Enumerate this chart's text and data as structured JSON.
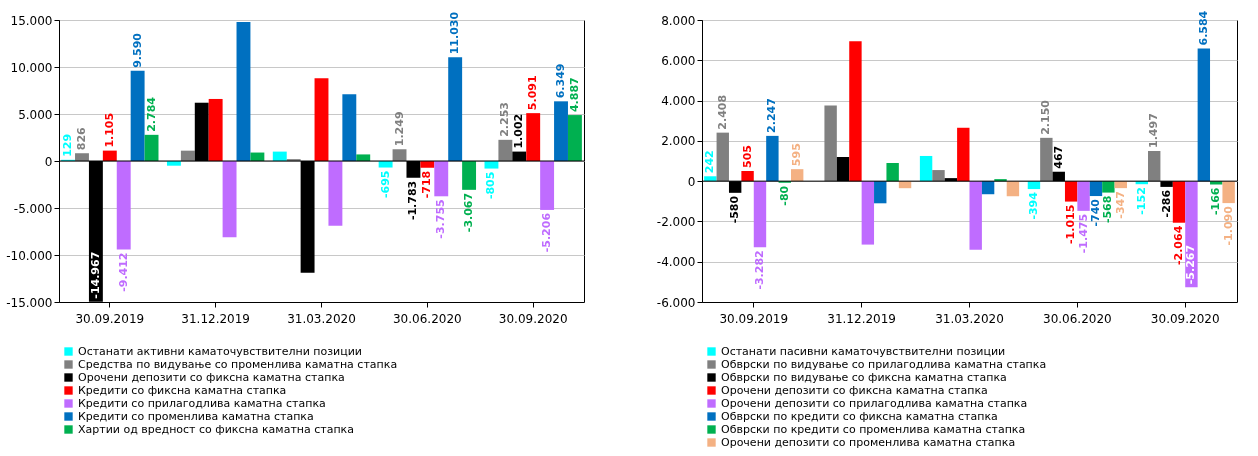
{
  "chart_data": [
    {
      "type": "bar",
      "categories": [
        "30.09.2019",
        "31.12.2019",
        "31.03.2020",
        "30.06.2020",
        "30.09.2020"
      ],
      "ylim": [
        -15000,
        15000
      ],
      "yticks": [
        {
          "value": -15000,
          "label": "-15.000"
        },
        {
          "value": -10000,
          "label": "-10.000"
        },
        {
          "value": -5000,
          "label": "-5.000"
        },
        0,
        {
          "value": 5000,
          "label": "5.000"
        },
        {
          "value": 10000,
          "label": "10.000"
        },
        {
          "value": 15000,
          "label": "15.000"
        }
      ],
      "grid": "y",
      "legend": "bottom",
      "series": [
        {
          "name": "Останати активни каматочувствителни позиции",
          "color": "#00ffff",
          "values": [
            129,
            -500,
            1000,
            -695,
            -805
          ],
          "value_labels": [
            "129",
            null,
            null,
            "-695",
            "-805"
          ]
        },
        {
          "name": "Средства по видување со променлива каматна стапка",
          "color": "#808080",
          "values": [
            826,
            1100,
            200,
            1249,
            2253
          ],
          "value_labels": [
            "826",
            null,
            null,
            "1.249",
            "2.253"
          ]
        },
        {
          "name": "Орочени депозити со фиксна каматна стапка",
          "color": "#000000",
          "values": [
            -14967,
            6200,
            -11900,
            -1783,
            1002
          ],
          "value_labels": [
            "-14.967",
            null,
            null,
            "-1.783",
            "1.002"
          ]
        },
        {
          "name": "Кредити со фиксна каматна стапка",
          "color": "#ff0000",
          "values": [
            1105,
            6600,
            8800,
            -718,
            5091
          ],
          "value_labels": [
            "1.105",
            null,
            null,
            "-718",
            "5.091"
          ]
        },
        {
          "name": "Кредити со прилагодлива каматна стапка",
          "color": "#bf6cff",
          "values": [
            -9412,
            -8100,
            -6900,
            -3755,
            -5206
          ],
          "value_labels": [
            "-9.412",
            null,
            null,
            "-3.755",
            "-5.206"
          ]
        },
        {
          "name": "Кредити со променлива каматна стапка",
          "color": "#0070c0",
          "values": [
            9590,
            14800,
            7100,
            11030,
            6349
          ],
          "value_labels": [
            "9.590",
            null,
            null,
            "11.030",
            "6.349"
          ]
        },
        {
          "name": "Хартии од вредност со фиксна каматна стапка",
          "color": "#00b050",
          "values": [
            2784,
            900,
            700,
            -3067,
            4887
          ],
          "value_labels": [
            "2.784",
            null,
            null,
            "-3.067",
            "4.887"
          ]
        }
      ]
    },
    {
      "type": "bar",
      "categories": [
        "30.09.2019",
        "31.12.2019",
        "31.03.2020",
        "30.06.2020",
        "30.09.2020"
      ],
      "ylim": [
        -6000,
        8000
      ],
      "yticks": [
        {
          "value": -6000,
          "label": "-6.000"
        },
        {
          "value": -4000,
          "label": "-4.000"
        },
        {
          "value": -2000,
          "label": "-2.000"
        },
        0,
        {
          "value": 2000,
          "label": "2.000"
        },
        {
          "value": 4000,
          "label": "4.000"
        },
        {
          "value": 6000,
          "label": "6.000"
        },
        {
          "value": 8000,
          "label": "8.000"
        }
      ],
      "grid": "y",
      "legend": "bottom",
      "series": [
        {
          "name": "Останати пасивни каматочувствителни позиции",
          "color": "#00ffff",
          "values": [
            242,
            null,
            1250,
            -394,
            -152
          ],
          "value_labels": [
            "242",
            null,
            null,
            "-394",
            "-152"
          ]
        },
        {
          "name": "Обврски по видување со прилагодлива каматна стапка",
          "color": "#808080",
          "values": [
            2408,
            3750,
            550,
            2150,
            1497
          ],
          "value_labels": [
            "2.408",
            null,
            null,
            "2.150",
            "1.497"
          ]
        },
        {
          "name": "Обврски по видување со фиксна каматна стапка",
          "color": "#000000",
          "values": [
            -580,
            1200,
            150,
            467,
            -286
          ],
          "value_labels": [
            "-580",
            null,
            null,
            "467",
            "-286"
          ]
        },
        {
          "name": "Орочени депозити со фиксна каматна стапка",
          "color": "#ff0000",
          "values": [
            505,
            6950,
            2650,
            -1015,
            -2064
          ],
          "value_labels": [
            "505",
            null,
            null,
            "-1.015",
            "-2.064"
          ]
        },
        {
          "name": "Орочени депозити со прилагодлива каматна стапка",
          "color": "#bf6cff",
          "values": [
            -3282,
            -3150,
            -3400,
            -1475,
            -5267
          ],
          "value_labels": [
            "-3.282",
            null,
            null,
            "-1.475",
            "-5.267"
          ]
        },
        {
          "name": "Обврски по кредити со фиксна каматна стапка",
          "color": "#0070c0",
          "values": [
            2247,
            -1100,
            -650,
            -740,
            6584
          ],
          "value_labels": [
            "2.247",
            null,
            null,
            "-740",
            "6.584"
          ]
        },
        {
          "name": "Обврски по кредити со променлива каматна стапка",
          "color": "#00b050",
          "values": [
            -80,
            900,
            100,
            -568,
            -166
          ],
          "value_labels": [
            "-80",
            null,
            null,
            "-568",
            "-166"
          ]
        },
        {
          "name": "Орочени депозити со променлива каматна стапка",
          "color": "#f4b183",
          "values": [
            595,
            -350,
            -750,
            -347,
            -1090
          ],
          "value_labels": [
            "595",
            null,
            null,
            "-347",
            "-1.090"
          ]
        }
      ]
    }
  ]
}
